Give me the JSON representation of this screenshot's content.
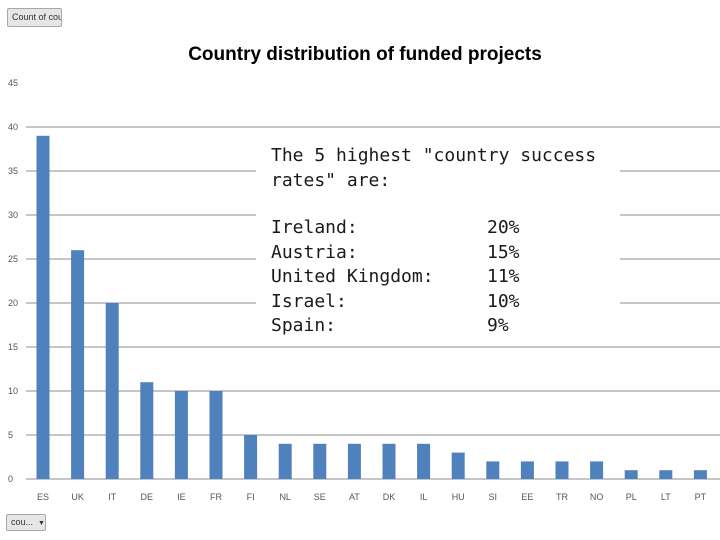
{
  "chart_data": {
    "type": "bar",
    "title": "Country distribution of funded projects",
    "categories": [
      "ES",
      "UK",
      "IT",
      "DE",
      "IE",
      "FR",
      "FI",
      "NL",
      "SE",
      "AT",
      "DK",
      "IL",
      "HU",
      "SI",
      "EE",
      "TR",
      "NO",
      "PL",
      "LT",
      "PT"
    ],
    "values": [
      39,
      26,
      20,
      11,
      10,
      10,
      5,
      4,
      4,
      4,
      4,
      4,
      3,
      2,
      2,
      2,
      2,
      1,
      1,
      1
    ],
    "ylim": [
      0,
      45
    ],
    "yticks": [
      0,
      5,
      10,
      15,
      20,
      25,
      30,
      35,
      40,
      45
    ],
    "grid": true,
    "bar_color": "#4f81bd"
  },
  "pivot": {
    "value_field_label": "Count of cou...",
    "axis_field_label": "cou..."
  },
  "overlay": {
    "heading": "The 5 highest \"country success rates\" are:",
    "rates": [
      {
        "country": "Ireland:",
        "rate": "20%"
      },
      {
        "country": "Austria:",
        "rate": "15%"
      },
      {
        "country": "United Kingdom:",
        "rate": "11%"
      },
      {
        "country": "Israel:",
        "rate": "10%"
      },
      {
        "country": "Spain:",
        "rate": "9%"
      }
    ]
  }
}
